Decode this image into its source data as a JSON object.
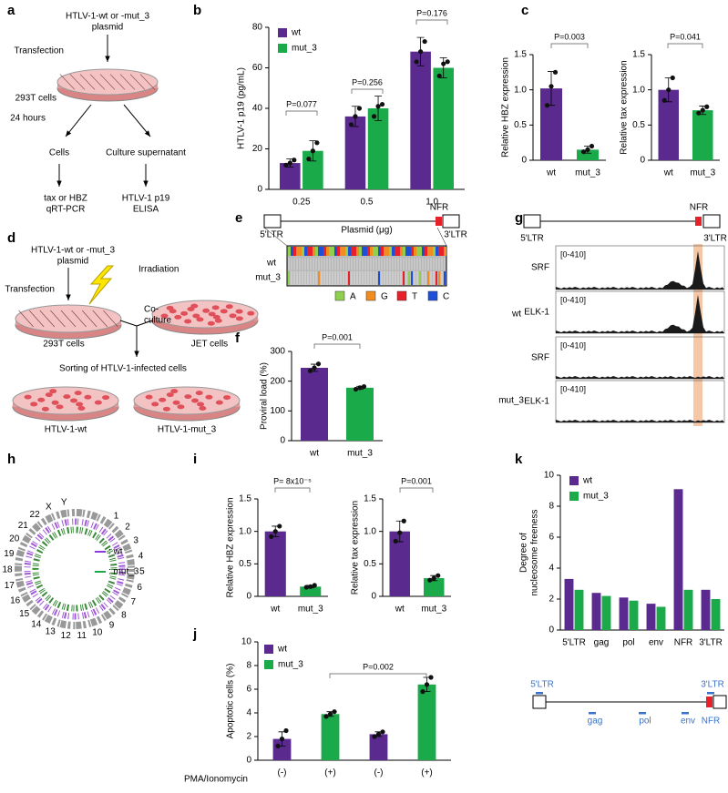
{
  "panels": [
    "a",
    "b",
    "c",
    "d",
    "e",
    "f",
    "g",
    "h",
    "i",
    "j",
    "k"
  ],
  "diagrams": {
    "a": {
      "plasmid": [
        "HTLV-1-wt or -mut_3",
        "plasmid"
      ],
      "transfection": "Transfection",
      "cells_293t": "293T cells",
      "time": "24 hours",
      "cells": "Cells",
      "supernatant": "Culture supernatant",
      "qpcr": [
        "tax or HBZ",
        "qRT-PCR"
      ],
      "elisa": [
        "HTLV-1 p19",
        "ELISA"
      ]
    },
    "d": {
      "plasmid": [
        "HTLV-1-wt or -mut_3",
        "plasmid"
      ],
      "irradiation": "Irradiation",
      "transfection": "Transfection",
      "coculture": [
        "Co-",
        "culture"
      ],
      "cells_293t": "293T cells",
      "jet": "JET cells",
      "sorting": "Sorting of HTLV-1-infected cells",
      "outputs": [
        "HTLV-1-wt",
        "HTLV-1-mut_3"
      ]
    },
    "e": {
      "nfr": "NFR",
      "ltr5": "5'LTR",
      "ltr3": "3'LTR",
      "rows": [
        "wt",
        "mut_3"
      ],
      "bases": [
        {
          "name": "A",
          "color": "#8fd14f"
        },
        {
          "name": "G",
          "color": "#f28c1e"
        },
        {
          "name": "T",
          "color": "#e8202a"
        },
        {
          "name": "C",
          "color": "#1f4fd8"
        }
      ]
    },
    "g": {
      "nfr": "NFR",
      "ltr5": "5'LTR",
      "ltr3": "3'LTR",
      "range": "[0-410]",
      "groups": [
        {
          "name": "wt",
          "tracks": [
            "SRF",
            "ELK-1"
          ]
        },
        {
          "name": "mut_3",
          "tracks": [
            "SRF",
            "ELK-1"
          ]
        }
      ]
    },
    "h": {
      "chromosomes": [
        "1",
        "2",
        "3",
        "4",
        "5",
        "6",
        "7",
        "8",
        "9",
        "10",
        "11",
        "12",
        "13",
        "14",
        "15",
        "16",
        "17",
        "18",
        "19",
        "20",
        "21",
        "22",
        "X",
        "Y"
      ],
      "legend": [
        ": wt",
        ": mut_3"
      ]
    },
    "k": {
      "ltr5": "5'LTR",
      "ltr3": "3'LTR",
      "genes": [
        "gag",
        "pol",
        "env"
      ],
      "nfr": "NFR"
    }
  },
  "chart_data": [
    {
      "type": "bar",
      "ylabel": "HTLV-1 p19 (pg/mL)",
      "xlabel": "Plasmid (μg)",
      "categories": [
        "0.25",
        "0.5",
        "1.0"
      ],
      "series": [
        {
          "name": "wt",
          "color": "#5b2a8e",
          "values": [
            13,
            36,
            68
          ],
          "errors": [
            2,
            5,
            7
          ],
          "points": [
            [
              12,
              13,
              14.5
            ],
            [
              32,
              36,
              40
            ],
            [
              63,
              68,
              73
            ]
          ]
        },
        {
          "name": "mut_3",
          "color": "#1aaa4a",
          "values": [
            19,
            40,
            60
          ],
          "errors": [
            5,
            6,
            5
          ],
          "points": [
            [
              15,
              19,
              23
            ],
            [
              36,
              41,
              42
            ],
            [
              56,
              62,
              63
            ]
          ]
        }
      ],
      "ylim": [
        0,
        80
      ],
      "yticks": [
        0,
        20,
        40,
        60,
        80
      ],
      "annotations": [
        "P=0.077",
        "P=0.256",
        "P=0.176"
      ]
    },
    {
      "type": "bar",
      "ylabel": "Relative HBZ expression",
      "categories": [
        "wt",
        "mut_3"
      ],
      "values": [
        1.02,
        0.15
      ],
      "errors": [
        0.24,
        0.05
      ],
      "points": [
        [
          0.78,
          1.05,
          1.25
        ],
        [
          0.12,
          0.15,
          0.2
        ]
      ],
      "colors": [
        "#5b2a8e",
        "#1aaa4a"
      ],
      "ylim": [
        0,
        1.5
      ],
      "yticks": [
        0,
        0.5,
        {
          "value": 1,
          "label": "1.0"
        },
        1.5
      ],
      "annotations": [
        "P=0.003"
      ]
    },
    {
      "type": "bar",
      "ylabel": "Relative tax expression",
      "categories": [
        "wt",
        "mut_3"
      ],
      "values": [
        1.0,
        0.71
      ],
      "errors": [
        0.17,
        0.06
      ],
      "points": [
        [
          0.85,
          1.0,
          1.17
        ],
        [
          0.67,
          0.71,
          0.76
        ]
      ],
      "colors": [
        "#5b2a8e",
        "#1aaa4a"
      ],
      "ylim": [
        0,
        1.5
      ],
      "yticks": [
        0,
        0.5,
        {
          "value": 1,
          "label": "1.0"
        },
        1.5
      ],
      "annotations": [
        "P=0.041"
      ]
    },
    {
      "type": "bar",
      "ylabel": "Proviral load (%)",
      "categories": [
        "wt",
        "mut_3"
      ],
      "values": [
        245,
        178
      ],
      "errors": [
        12,
        5
      ],
      "points": [
        [
          235,
          245,
          258
        ],
        [
          173,
          178,
          182
        ]
      ],
      "colors": [
        "#5b2a8e",
        "#1aaa4a"
      ],
      "ylim": [
        0,
        300
      ],
      "yticks": [
        0,
        100,
        200,
        300
      ],
      "annotations": [
        "P=0.001"
      ]
    },
    {
      "type": "bar",
      "ylabel": "Relative HBZ expression",
      "categories": [
        "wt",
        "mut_3"
      ],
      "values": [
        1.0,
        0.15
      ],
      "errors": [
        0.08,
        0.02
      ],
      "points": [
        [
          0.92,
          1.0,
          1.08
        ],
        [
          0.14,
          0.15,
          0.17
        ]
      ],
      "colors": [
        "#5b2a8e",
        "#1aaa4a"
      ],
      "ylim": [
        0,
        1.5
      ],
      "yticks": [
        0,
        0.5,
        {
          "value": 1,
          "label": "1.0"
        },
        1.5
      ],
      "annotations": [
        "P= 8x10⁻⁵"
      ]
    },
    {
      "type": "bar",
      "ylabel": "Relative tax expression",
      "categories": [
        "wt",
        "mut_3"
      ],
      "values": [
        1.0,
        0.28
      ],
      "errors": [
        0.16,
        0.04
      ],
      "points": [
        [
          0.85,
          0.98,
          1.16
        ],
        [
          0.25,
          0.28,
          0.32
        ]
      ],
      "colors": [
        "#5b2a8e",
        "#1aaa4a"
      ],
      "ylim": [
        0,
        1.5
      ],
      "yticks": [
        0,
        0.5,
        {
          "value": 1,
          "label": "1.0"
        },
        1.5
      ],
      "annotations": [
        "P=0.001"
      ]
    },
    {
      "type": "bar",
      "ylabel": "Apoptotic cells (%)",
      "xgroup_label": "PMA/Ionomycin",
      "categories": [
        "(-)",
        "(+)",
        "(-)",
        "(+)"
      ],
      "series": [
        {
          "name": "wt",
          "color": "#5b2a8e",
          "values": [
            1.8,
            null,
            2.2,
            null
          ],
          "errors": [
            0.6,
            null,
            0.2,
            null
          ],
          "points": [
            [
              1.2,
              1.8,
              2.5
            ],
            null,
            [
              2.0,
              2.2,
              2.4
            ],
            null
          ]
        },
        {
          "name": "mut_3",
          "color": "#1aaa4a",
          "values": [
            null,
            3.9,
            null,
            6.4
          ],
          "errors": [
            null,
            0.2,
            null,
            0.6
          ],
          "points": [
            null,
            [
              3.7,
              3.9,
              4.1
            ],
            null,
            [
              5.8,
              6.4,
              7.0
            ]
          ]
        }
      ],
      "ylim": [
        0,
        10
      ],
      "yticks": [
        0,
        2,
        4,
        6,
        8,
        10
      ],
      "annotations": [
        "P=0.002"
      ]
    },
    {
      "type": "bar",
      "ylabel": [
        "Degree of",
        "nucleosome freeness"
      ],
      "categories": [
        "5'LTR",
        "gag",
        "pol",
        "env",
        "NFR",
        "3'LTR"
      ],
      "series": [
        {
          "name": "wt",
          "color": "#5b2a8e",
          "values": [
            3.3,
            2.4,
            2.1,
            1.7,
            9.1,
            2.6
          ]
        },
        {
          "name": "mut_3",
          "color": "#1aaa4a",
          "values": [
            2.6,
            2.2,
            1.9,
            1.5,
            2.6,
            2.0
          ]
        }
      ],
      "ylim": [
        0,
        10
      ],
      "yticks": [
        0,
        2,
        4,
        6,
        8,
        10
      ]
    }
  ]
}
